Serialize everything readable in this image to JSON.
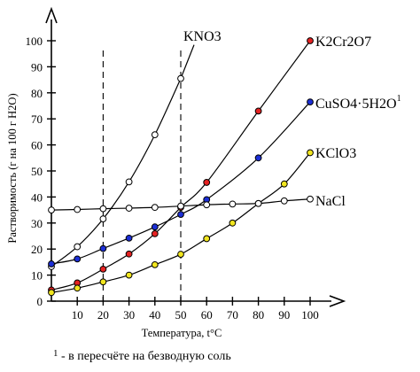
{
  "chart_data": {
    "type": "line",
    "title": "",
    "xlabel": "Температура, t°C",
    "ylabel": "Растворимость (г на 100 г H2O)",
    "xlim": [
      0,
      100
    ],
    "ylim": [
      0,
      100
    ],
    "x_ticks": [
      10,
      20,
      30,
      40,
      50,
      60,
      70,
      80,
      90,
      100
    ],
    "y_ticks": [
      0,
      10,
      20,
      30,
      40,
      50,
      60,
      70,
      80,
      90,
      100
    ],
    "grid": "vertical dashed at 20 and 50",
    "series": [
      {
        "name": "KNO3",
        "color": "#ffffff",
        "x": [
          0,
          10,
          20,
          30,
          40,
          50
        ],
        "y": [
          13.3,
          20.9,
          31.6,
          45.8,
          63.9,
          85.5
        ]
      },
      {
        "name": "K2Cr2O7",
        "color": "#e52222",
        "x": [
          0,
          10,
          20,
          30,
          40,
          50,
          60,
          80,
          100
        ],
        "y": [
          4.3,
          7.0,
          12.3,
          18.1,
          25.9,
          36.0,
          45.6,
          73.0,
          100.0
        ]
      },
      {
        "name": "CuSO4·5H2O",
        "color": "#1c2fd6",
        "x": [
          0,
          10,
          20,
          30,
          40,
          50,
          60,
          80,
          100
        ],
        "y": [
          14.3,
          16.2,
          20.2,
          24.2,
          28.5,
          33.3,
          39.0,
          55.0,
          76.5
        ]
      },
      {
        "name": "KClO3",
        "color": "#f2e61f",
        "x": [
          0,
          10,
          20,
          30,
          40,
          50,
          60,
          70,
          80,
          90,
          100
        ],
        "y": [
          3.3,
          5.0,
          7.4,
          10.0,
          14.0,
          18.0,
          24.0,
          30.0,
          37.5,
          45.0,
          57.0
        ]
      },
      {
        "name": "NaCl",
        "color": "#ffffff",
        "x": [
          0,
          10,
          20,
          30,
          40,
          50,
          60,
          70,
          80,
          90,
          100
        ],
        "y": [
          35.0,
          35.2,
          35.5,
          35.7,
          36.0,
          36.5,
          37.0,
          37.3,
          37.5,
          38.5,
          39.2
        ]
      }
    ]
  },
  "labels": {
    "kno3": "KNO3",
    "k2cr2o7": "K2Cr2O7",
    "cuso4": "CuSO4·5H2O",
    "cuso4_note": "1",
    "kclo3": "KClO3",
    "nacl": "NaCl"
  },
  "footnote": {
    "marker": "1",
    "text": "- в пересчёте на безводную соль"
  }
}
